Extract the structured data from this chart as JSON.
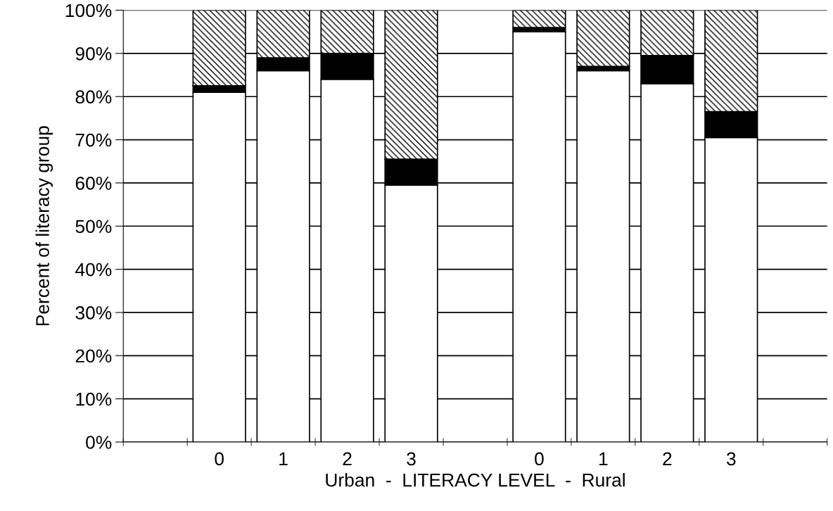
{
  "chart_data": {
    "type": "bar",
    "stacked": true,
    "xlabel": "Urban  -  LITERACY LEVEL  -  Rural",
    "ylabel": "Percent of literacy group",
    "categories": [
      null,
      "0",
      "1",
      "2",
      "3",
      null,
      "0",
      "1",
      "2",
      "3",
      null
    ],
    "series": [
      {
        "color": "#ffffff",
        "values": [
          null,
          81,
          86,
          84,
          59.5,
          null,
          95,
          86,
          83,
          70.5,
          null
        ]
      },
      {
        "color": "#000000",
        "values": [
          null,
          1.5,
          3,
          6,
          6,
          null,
          1,
          1,
          6.5,
          6,
          null
        ]
      },
      {
        "color": "#000000",
        "values": [
          null,
          17.5,
          11,
          10,
          34.5,
          null,
          4,
          13,
          10.5,
          23.5,
          null
        ]
      }
    ],
    "ylim": [
      0,
      100
    ],
    "yticks": [
      {
        "value": 0,
        "label": "0%"
      },
      {
        "value": 10,
        "label": "10%"
      },
      {
        "value": 20,
        "label": "20%"
      },
      {
        "value": 30,
        "label": "30%"
      },
      {
        "value": 40,
        "label": "40%"
      },
      {
        "value": 50,
        "label": "50%"
      },
      {
        "value": 60,
        "label": "60%"
      },
      {
        "value": 70,
        "label": "70%"
      },
      {
        "value": 80,
        "label": "80%"
      },
      {
        "value": 90,
        "label": "90%"
      },
      {
        "value": 100,
        "label": "100%"
      }
    ],
    "grid": "y",
    "legend": false
  }
}
